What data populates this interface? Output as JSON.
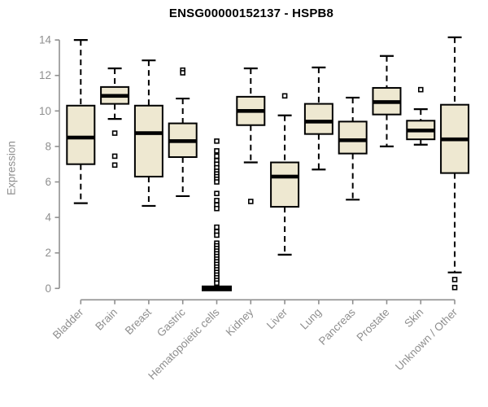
{
  "title": "ENSG00000152137 - HSPB8",
  "colors": {
    "background": "#FFFFFF",
    "box_fill": "#EEE8D1",
    "box_border": "#000000",
    "median": "#000000",
    "whisker": "#000000",
    "outlier_border": "#000000",
    "outlier_fill": "#FFFFFF",
    "axis": "#8F8F8F",
    "axis_text": "#8F8F8F",
    "title_text": "#000000"
  },
  "chart_data": {
    "type": "boxplot",
    "title": "ENSG00000152137 - HSPB8",
    "xlabel": "",
    "ylabel": "Expression",
    "ylim": [
      0,
      14
    ],
    "yticks": [
      0,
      2,
      4,
      6,
      8,
      10,
      12,
      14
    ],
    "grid": false,
    "legend": "none",
    "x_label_rotation_deg": 45,
    "categories": [
      "Bladder",
      "Brain",
      "Breast",
      "Gastric",
      "Hematopoietic cells",
      "Kidney",
      "Liver",
      "Lung",
      "Pancreas",
      "Prostate",
      "Skin",
      "Unknown / Other"
    ],
    "series": [
      {
        "name": "Bladder",
        "whisker_low": 4.8,
        "q1": 7.0,
        "median": 8.5,
        "q3": 10.3,
        "whisker_high": 14.0,
        "outliers": []
      },
      {
        "name": "Brain",
        "whisker_low": 9.55,
        "q1": 10.4,
        "median": 10.85,
        "q3": 11.35,
        "whisker_high": 12.4,
        "outliers": [
          8.75,
          7.45,
          6.95
        ]
      },
      {
        "name": "Breast",
        "whisker_low": 4.65,
        "q1": 6.3,
        "median": 8.75,
        "q3": 10.3,
        "whisker_high": 12.85,
        "outliers": []
      },
      {
        "name": "Gastric",
        "whisker_low": 5.2,
        "q1": 7.4,
        "median": 8.3,
        "q3": 9.3,
        "whisker_high": 10.7,
        "outliers": [
          12.3,
          12.15
        ]
      },
      {
        "name": "Hematopoietic cells",
        "whisker_low": 0,
        "q1": 0,
        "median": 0,
        "q3": 0,
        "whisker_high": 0,
        "outliers": [
          8.3,
          7.75,
          7.45,
          7.2,
          7.0,
          6.8,
          6.6,
          6.45,
          6.3,
          6.15,
          6.0,
          5.35,
          4.95,
          4.7,
          4.5,
          3.45,
          3.2,
          3.0,
          2.55,
          2.4,
          2.25,
          2.1,
          1.95,
          1.8,
          1.65,
          1.5,
          1.35,
          1.2,
          1.05,
          0.9,
          0.75,
          0.6,
          0.45,
          0.3
        ]
      },
      {
        "name": "Kidney",
        "whisker_low": 7.1,
        "q1": 9.2,
        "median": 10.0,
        "q3": 10.8,
        "whisker_high": 12.4,
        "outliers": [
          4.9
        ]
      },
      {
        "name": "Liver",
        "whisker_low": 1.9,
        "q1": 4.6,
        "median": 6.3,
        "q3": 7.1,
        "whisker_high": 9.75,
        "outliers": [
          10.85
        ]
      },
      {
        "name": "Lung",
        "whisker_low": 6.7,
        "q1": 8.7,
        "median": 9.4,
        "q3": 10.4,
        "whisker_high": 12.45,
        "outliers": []
      },
      {
        "name": "Pancreas",
        "whisker_low": 5.0,
        "q1": 7.6,
        "median": 8.35,
        "q3": 9.4,
        "whisker_high": 10.75,
        "outliers": []
      },
      {
        "name": "Prostate",
        "whisker_low": 8.0,
        "q1": 9.8,
        "median": 10.5,
        "q3": 11.3,
        "whisker_high": 13.1,
        "outliers": []
      },
      {
        "name": "Skin",
        "whisker_low": 8.1,
        "q1": 8.4,
        "median": 8.9,
        "q3": 9.45,
        "whisker_high": 10.1,
        "outliers": [
          11.2
        ]
      },
      {
        "name": "Unknown / Other",
        "whisker_low": 0.9,
        "q1": 6.5,
        "median": 8.4,
        "q3": 10.35,
        "whisker_high": 14.15,
        "outliers": [
          0.5,
          0.05
        ]
      }
    ]
  }
}
